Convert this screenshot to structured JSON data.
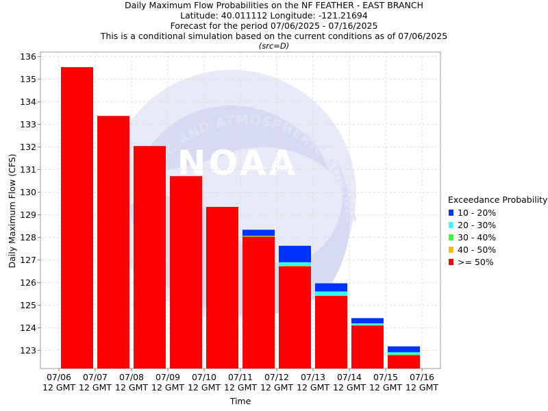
{
  "header": {
    "title": "Daily Maximum Flow Probabilities on the NF FEATHER - EAST BRANCH",
    "location": "Latitude: 40.011112 Longitude: -121.21694",
    "period": "Forecast for the period 07/06/2025 - 07/16/2025",
    "note": "This is a conditional simulation based on the current conditions as of 07/06/2025",
    "source": "(src=D)"
  },
  "watermark": {
    "logo_text": "NOAA",
    "ring_text": "NATIONAL OCEANIC AND ATMOSPHERIC ADMINISTRATION"
  },
  "chart_data": {
    "type": "bar",
    "stacked": true,
    "xlabel": "Time",
    "ylabel": "Daily Maximum Flow (CFS)",
    "ylim": [
      122.2,
      136.2
    ],
    "yticks": [
      123,
      124,
      125,
      126,
      127,
      128,
      129,
      130,
      131,
      132,
      133,
      134,
      135,
      136
    ],
    "xticks": [
      {
        "line1": "07/06",
        "line2": "12 GMT"
      },
      {
        "line1": "07/07",
        "line2": "12 GMT"
      },
      {
        "line1": "07/08",
        "line2": "12 GMT"
      },
      {
        "line1": "07/09",
        "line2": "12 GMT"
      },
      {
        "line1": "07/10",
        "line2": "12 GMT"
      },
      {
        "line1": "07/11",
        "line2": "12 GMT"
      },
      {
        "line1": "07/12",
        "line2": "12 GMT"
      },
      {
        "line1": "07/13",
        "line2": "12 GMT"
      },
      {
        "line1": "07/14",
        "line2": "12 GMT"
      },
      {
        "line1": "07/15",
        "line2": "12 GMT"
      },
      {
        "line1": "07/16",
        "line2": "12 GMT"
      }
    ],
    "grid": true,
    "legend_title": "Exceedance Probability",
    "legend_position": "right",
    "series_legend": [
      {
        "name": "10 - 20%",
        "color": "#0033ff"
      },
      {
        "name": "20 - 30%",
        "color": "#33ffff"
      },
      {
        "name": "30 - 40%",
        "color": "#33ff33"
      },
      {
        "name": "40 - 50%",
        "color": "#ffbb00"
      },
      {
        "name": ">= 50%",
        "color": "#ff0000"
      }
    ],
    "bars": [
      {
        "day": "07/06",
        "p50": 135.53,
        "p40": 135.53,
        "p30": 135.53,
        "p20": 135.53,
        "p10": 135.53
      },
      {
        "day": "07/07",
        "p50": 133.37,
        "p40": 133.37,
        "p30": 133.37,
        "p20": 133.37,
        "p10": 133.37
      },
      {
        "day": "07/08",
        "p50": 132.04,
        "p40": 132.04,
        "p30": 132.04,
        "p20": 132.04,
        "p10": 132.04
      },
      {
        "day": "07/09",
        "p50": 130.71,
        "p40": 130.71,
        "p30": 130.71,
        "p20": 130.71,
        "p10": 130.71
      },
      {
        "day": "07/10",
        "p50": 129.35,
        "p40": 129.35,
        "p30": 129.35,
        "p20": 129.35,
        "p10": 129.35
      },
      {
        "day": "07/11",
        "p50": 128.03,
        "p40": 128.05,
        "p30": 128.07,
        "p20": 128.07,
        "p10": 128.34
      },
      {
        "day": "07/12",
        "p50": 126.72,
        "p40": 126.74,
        "p30": 126.75,
        "p20": 126.9,
        "p10": 127.63
      },
      {
        "day": "07/13",
        "p50": 125.41,
        "p40": 125.43,
        "p30": 125.44,
        "p20": 125.61,
        "p10": 125.97
      },
      {
        "day": "07/14",
        "p50": 124.1,
        "p40": 124.12,
        "p30": 124.14,
        "p20": 124.2,
        "p10": 124.43
      },
      {
        "day": "07/15",
        "p50": 122.79,
        "p40": 122.81,
        "p30": 122.83,
        "p20": 122.92,
        "p10": 123.18
      }
    ]
  }
}
